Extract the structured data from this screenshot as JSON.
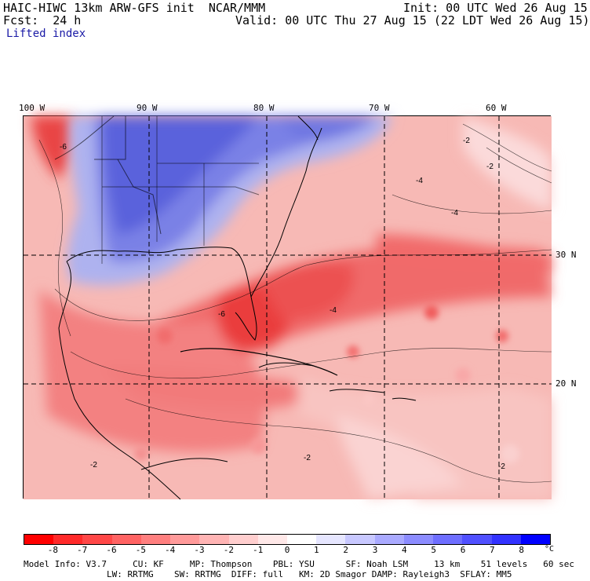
{
  "header": {
    "model_line": "HAIC-HIWC 13km ARW-GFS init  NCAR/MMM",
    "init_line": "Init: 00 UTC Wed 26 Aug 15",
    "fcst_line": "Fcst:  24 h",
    "valid_line": "Valid: 00 UTC Thu 27 Aug 15 (22 LDT Wed 26 Aug 15)",
    "field_name": "Lifted index"
  },
  "map": {
    "longitude_labels": [
      "100 W",
      "90 W",
      "80 W",
      "70 W",
      "60 W"
    ],
    "latitude_labels": [
      "30 N",
      "20 N"
    ],
    "contour_labels": [
      "-6",
      "-2",
      "-4",
      "-4",
      "-2",
      "-2",
      "-2",
      "-6",
      "-2",
      "-4"
    ]
  },
  "colorbar": {
    "tick_labels": [
      "-8",
      "-7",
      "-6",
      "-5",
      "-4",
      "-3",
      "-2",
      "-1",
      "0",
      "1",
      "2",
      "3",
      "4",
      "5",
      "6",
      "7",
      "8"
    ],
    "unit": "°C",
    "colors": [
      "#ff0000",
      "#ff2a2a",
      "#ff4747",
      "#ff6363",
      "#ff7f7f",
      "#ff9a9a",
      "#ffb4b4",
      "#ffcece",
      "#ffe8e8",
      "#ffffff",
      "#e6e6ff",
      "#c8c8ff",
      "#aaaaff",
      "#8c8cff",
      "#6e6eff",
      "#5050ff",
      "#3232ff",
      "#0000ff"
    ]
  },
  "footer": {
    "line1": "Model Info: V3.7     CU: KF     MP: Thompson    PBL: YSU      SF: Noah LSM     13 km    51 levels   60 sec",
    "line2": "                LW: RRTMG    SW: RRTMG  DIFF: full   KM: 2D Smagor DAMP: Rayleigh3  SFLAY: MM5"
  }
}
